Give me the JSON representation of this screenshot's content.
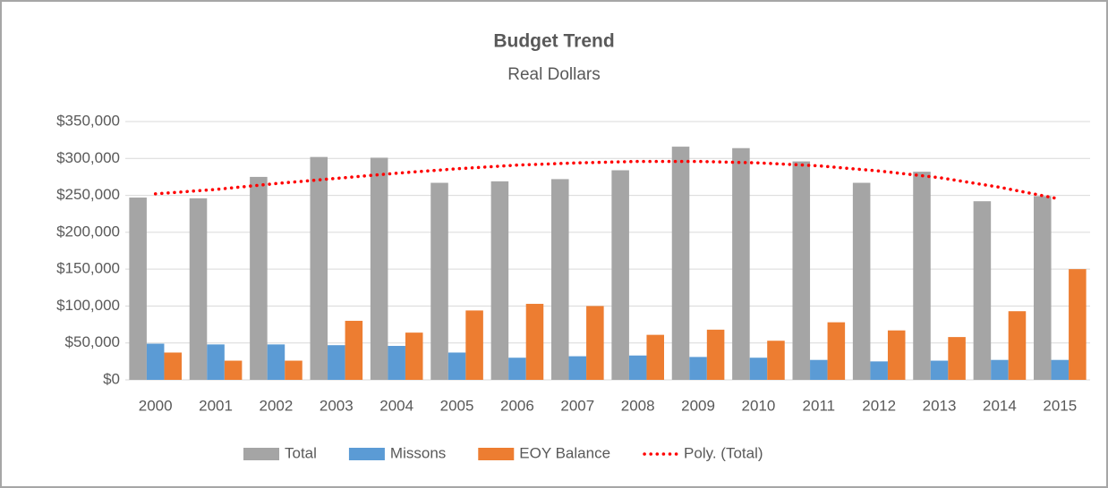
{
  "chart_data": {
    "type": "bar",
    "title": "Budget Trend",
    "subtitle": "Real Dollars",
    "categories": [
      "2000",
      "2001",
      "2002",
      "2003",
      "2004",
      "2005",
      "2006",
      "2007",
      "2008",
      "2009",
      "2010",
      "2011",
      "2012",
      "2013",
      "2014",
      "2015"
    ],
    "series": [
      {
        "name": "Total",
        "color": "#a5a5a5",
        "values": [
          247000,
          246000,
          275000,
          302000,
          301000,
          267000,
          269000,
          272000,
          284000,
          316000,
          314000,
          296000,
          267000,
          282000,
          242000,
          249000
        ]
      },
      {
        "name": "Missons",
        "color": "#5b9bd5",
        "values": [
          49000,
          48000,
          48000,
          47000,
          46000,
          37000,
          30000,
          32000,
          33000,
          31000,
          30000,
          27000,
          25000,
          26000,
          27000,
          27000
        ]
      },
      {
        "name": "EOY Balance",
        "color": "#ed7d31",
        "values": [
          37000,
          26000,
          26000,
          80000,
          64000,
          94000,
          103000,
          100000,
          61000,
          68000,
          53000,
          78000,
          67000,
          58000,
          93000,
          150000
        ]
      },
      {
        "name": "Poly. (Total)",
        "color": "#ff0000",
        "type": "line",
        "line_style": "dotted",
        "values": [
          252000,
          258000,
          266000,
          273000,
          280000,
          286000,
          291000,
          294000,
          296000,
          296000,
          294000,
          290000,
          283000,
          274000,
          261000,
          245000
        ]
      }
    ],
    "ylim": [
      0,
      350000
    ],
    "yticks": [
      {
        "value": 0,
        "label": "$0"
      },
      {
        "value": 50000,
        "label": "$50,000"
      },
      {
        "value": 100000,
        "label": "$100,000"
      },
      {
        "value": 150000,
        "label": "$150,000"
      },
      {
        "value": 200000,
        "label": "$200,000"
      },
      {
        "value": 250000,
        "label": "$250,000"
      },
      {
        "value": 300000,
        "label": "$300,000"
      },
      {
        "value": 350000,
        "label": "$350,000"
      }
    ],
    "grid": true,
    "legend": "bottom"
  }
}
